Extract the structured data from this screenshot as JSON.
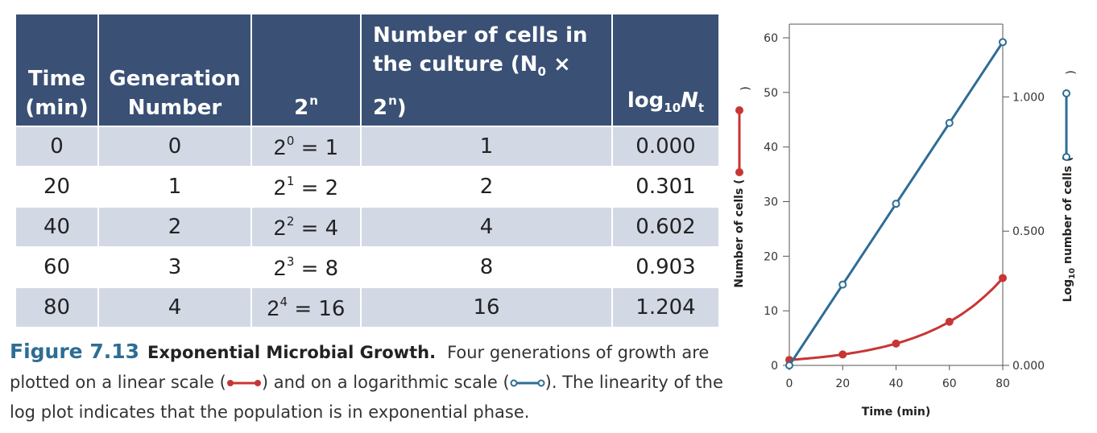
{
  "table": {
    "headers": {
      "time": [
        "Time",
        "(min)"
      ],
      "generation": [
        "Generation",
        "Number"
      ],
      "pow": {
        "base": "2",
        "exp": "n"
      },
      "cells": {
        "line1": "Number of cells in",
        "line2a": "the culture (N",
        "line2sub": "0",
        "line2b": " × 2",
        "line2sup": "n",
        "line2c": ")"
      },
      "log": {
        "base": "log",
        "sub": "10",
        "var": "N",
        "varsub": "t"
      }
    },
    "rows": [
      {
        "time": "0",
        "gen": "0",
        "pow_exp": "0",
        "pow_val": "= 1",
        "cells": "1",
        "log": "0.000"
      },
      {
        "time": "20",
        "gen": "1",
        "pow_exp": "1",
        "pow_val": "= 2",
        "cells": "2",
        "log": "0.301"
      },
      {
        "time": "40",
        "gen": "2",
        "pow_exp": "2",
        "pow_val": "= 4",
        "cells": "4",
        "log": "0.602"
      },
      {
        "time": "60",
        "gen": "3",
        "pow_exp": "3",
        "pow_val": "= 8",
        "cells": "8",
        "log": "0.903"
      },
      {
        "time": "80",
        "gen": "4",
        "pow_exp": "4",
        "pow_val": "= 16",
        "cells": "16",
        "log": "1.204"
      }
    ]
  },
  "caption": {
    "figure_number": "Figure 7.13",
    "title": "Exponential Microbial Growth.",
    "text_1": "Four generations of growth are plotted on a linear scale (",
    "text_2": ") and on a logarithmic scale (",
    "text_3": "). The linearity of the log plot indicates that the population is in exponential phase."
  },
  "colors": {
    "header_bg": "#3a5075",
    "row_alt": "#d3d8e5",
    "linear": "#c73634",
    "log": "#2e6d94",
    "fig_num": "#2e6d94"
  },
  "chart_data": {
    "type": "line",
    "xlabel": "Time (min)",
    "ylabel_left": "Number of cells",
    "ylabel_right_prefix": "Log",
    "ylabel_right_sub": "10",
    "ylabel_right_suffix": " number of cells",
    "x_ticks": [
      0,
      20,
      40,
      60,
      80
    ],
    "y_left_ticks": [
      0,
      10,
      20,
      30,
      40,
      50,
      60
    ],
    "y_right_ticks": [
      "0.000",
      "0.500",
      "1.000"
    ],
    "xlim": [
      0,
      80
    ],
    "ylim_left": [
      0,
      60
    ],
    "ylim_right": [
      0,
      1.25
    ],
    "grid": false,
    "series": [
      {
        "axis": "left",
        "x": [
          0,
          20,
          40,
          60,
          80
        ],
        "y": [
          1,
          2,
          4,
          8,
          16
        ],
        "color": "#c73634",
        "marker": "filled"
      },
      {
        "axis": "right",
        "x": [
          0,
          20,
          40,
          60,
          80
        ],
        "y": [
          0.0,
          0.301,
          0.602,
          0.903,
          1.204
        ],
        "color": "#2e6d94",
        "marker": "open"
      }
    ]
  }
}
